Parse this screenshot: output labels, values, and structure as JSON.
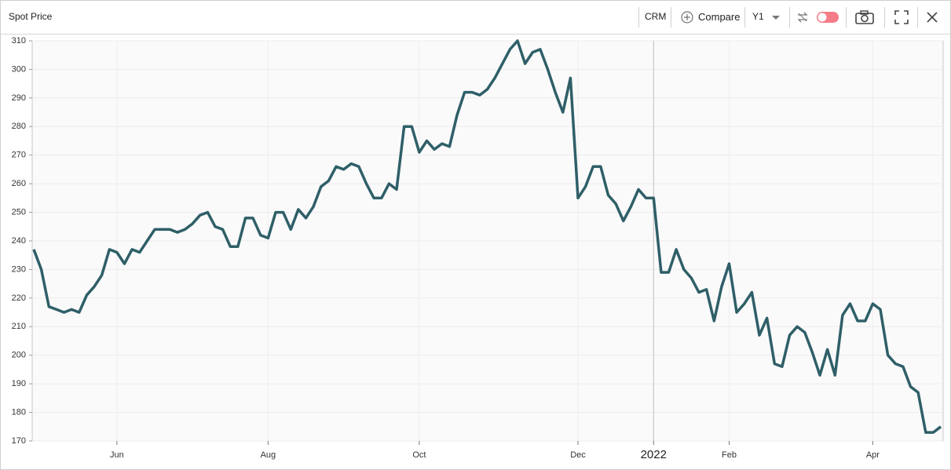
{
  "toolbar": {
    "symbol": "CRM",
    "compare": "Compare",
    "period": "Y1"
  },
  "chart_data": {
    "type": "line",
    "title": "Spot Price",
    "categories": [
      null,
      null,
      null,
      null,
      null,
      null,
      null,
      null,
      null,
      null,
      null,
      "Jun",
      null,
      null,
      null,
      null,
      null,
      null,
      null,
      null,
      null,
      null,
      null,
      null,
      null,
      null,
      null,
      null,
      null,
      null,
      null,
      "Aug",
      null,
      null,
      null,
      null,
      null,
      null,
      null,
      null,
      null,
      null,
      null,
      null,
      null,
      null,
      null,
      null,
      null,
      null,
      null,
      "Oct",
      null,
      null,
      null,
      null,
      null,
      null,
      null,
      null,
      null,
      null,
      null,
      null,
      null,
      null,
      null,
      null,
      null,
      null,
      null,
      null,
      "Dec",
      null,
      null,
      null,
      null,
      null,
      null,
      null,
      null,
      null,
      "2022",
      null,
      null,
      null,
      null,
      null,
      null,
      null,
      null,
      null,
      "Feb",
      null,
      null,
      null,
      null,
      null,
      null,
      null,
      null,
      null,
      null,
      null,
      null,
      null,
      null,
      null,
      null,
      null,
      null,
      "Apr",
      null,
      null,
      null,
      null,
      null,
      null,
      null,
      null,
      null
    ],
    "series": [
      {
        "name": "CRM",
        "color": "#2f5f68",
        "values": [
          237,
          230,
          217,
          216,
          215,
          216,
          215,
          221,
          224,
          228,
          237,
          236,
          232,
          237,
          236,
          240,
          244,
          244,
          244,
          243,
          244,
          246,
          249,
          250,
          245,
          244,
          238,
          238,
          248,
          248,
          242,
          241,
          250,
          250,
          244,
          251,
          248,
          252,
          259,
          261,
          266,
          265,
          267,
          266,
          260,
          255,
          255,
          260,
          258,
          280,
          280,
          271,
          275,
          272,
          274,
          273,
          284,
          292,
          292,
          291,
          293,
          297,
          302,
          307,
          310,
          302,
          306,
          307,
          300,
          292,
          285,
          297,
          255,
          259,
          266,
          266,
          256,
          253,
          247,
          252,
          258,
          255,
          255,
          229,
          229,
          237,
          230,
          227,
          222,
          223,
          212,
          224,
          232,
          215,
          218,
          222,
          207,
          213,
          197,
          196,
          207,
          210,
          208,
          201,
          193,
          202,
          193,
          214,
          218,
          212,
          212,
          218,
          216,
          200,
          197,
          196,
          189,
          187,
          173,
          173,
          175
        ]
      }
    ],
    "ylim": [
      170,
      310
    ],
    "yticks": [
      170,
      180,
      190,
      200,
      210,
      220,
      230,
      240,
      250,
      260,
      270,
      280,
      290,
      300,
      310
    ],
    "grid": true
  }
}
